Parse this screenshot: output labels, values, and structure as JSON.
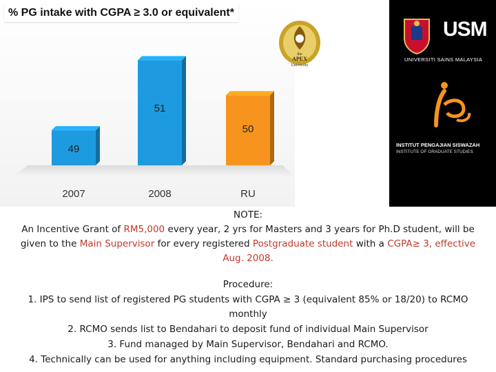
{
  "chart_data": {
    "type": "bar",
    "title": "% PG intake with CGPA ≥ 3.0 or equivalent*",
    "categories": [
      "2007",
      "2008",
      "RU"
    ],
    "values": [
      49,
      51,
      50
    ],
    "colors": [
      "#1e9be0",
      "#1e9be0",
      "#f7941d"
    ],
    "value_labels": [
      "49",
      "51",
      "50"
    ],
    "xlabel": "",
    "ylabel": ""
  },
  "logos": {
    "apex": {
      "line1": "the",
      "line2": "APEX",
      "line3": "University"
    },
    "usm": {
      "mark": "USM",
      "name": "UNIVERSITI SAINS MALAYSIA"
    },
    "ips": {
      "mark": "ips",
      "name_line1": "INSTITUT PENGAJIAN SISWAZAH",
      "name_line2": "INSTITUTE OF GRADUATE STUDIES"
    }
  },
  "note": {
    "heading": "NOTE:",
    "l1_a": "An Incentive Grant of ",
    "l1_b": "RM5,000",
    "l1_c": " every year, 2 yrs for Masters and 3 years for Ph.D student, will be",
    "l2_a": "given to the ",
    "l2_b": "Main Supervisor",
    "l2_c": " for every registered ",
    "l2_d": "Postgraduate student",
    "l2_e": " with a ",
    "l2_f": "CGPA≥ 3, effective",
    "l3": "Aug. 2008."
  },
  "procedure": {
    "heading": "Procedure:",
    "step1_a": "1.  IPS to send list of registered PG students with CGPA ≥ 3 (equivalent 85% or 18/20) to RCMO",
    "step1_b": "monthly",
    "step2": "2.  RCMO sends list to Bendahari to deposit fund of individual Main Supervisor",
    "step3": "3.  Fund managed by Main Supervisor, Bendahari and RCMO.",
    "step4": "4.  Technically can be used for anything including equipment. Standard purchasing procedures"
  }
}
